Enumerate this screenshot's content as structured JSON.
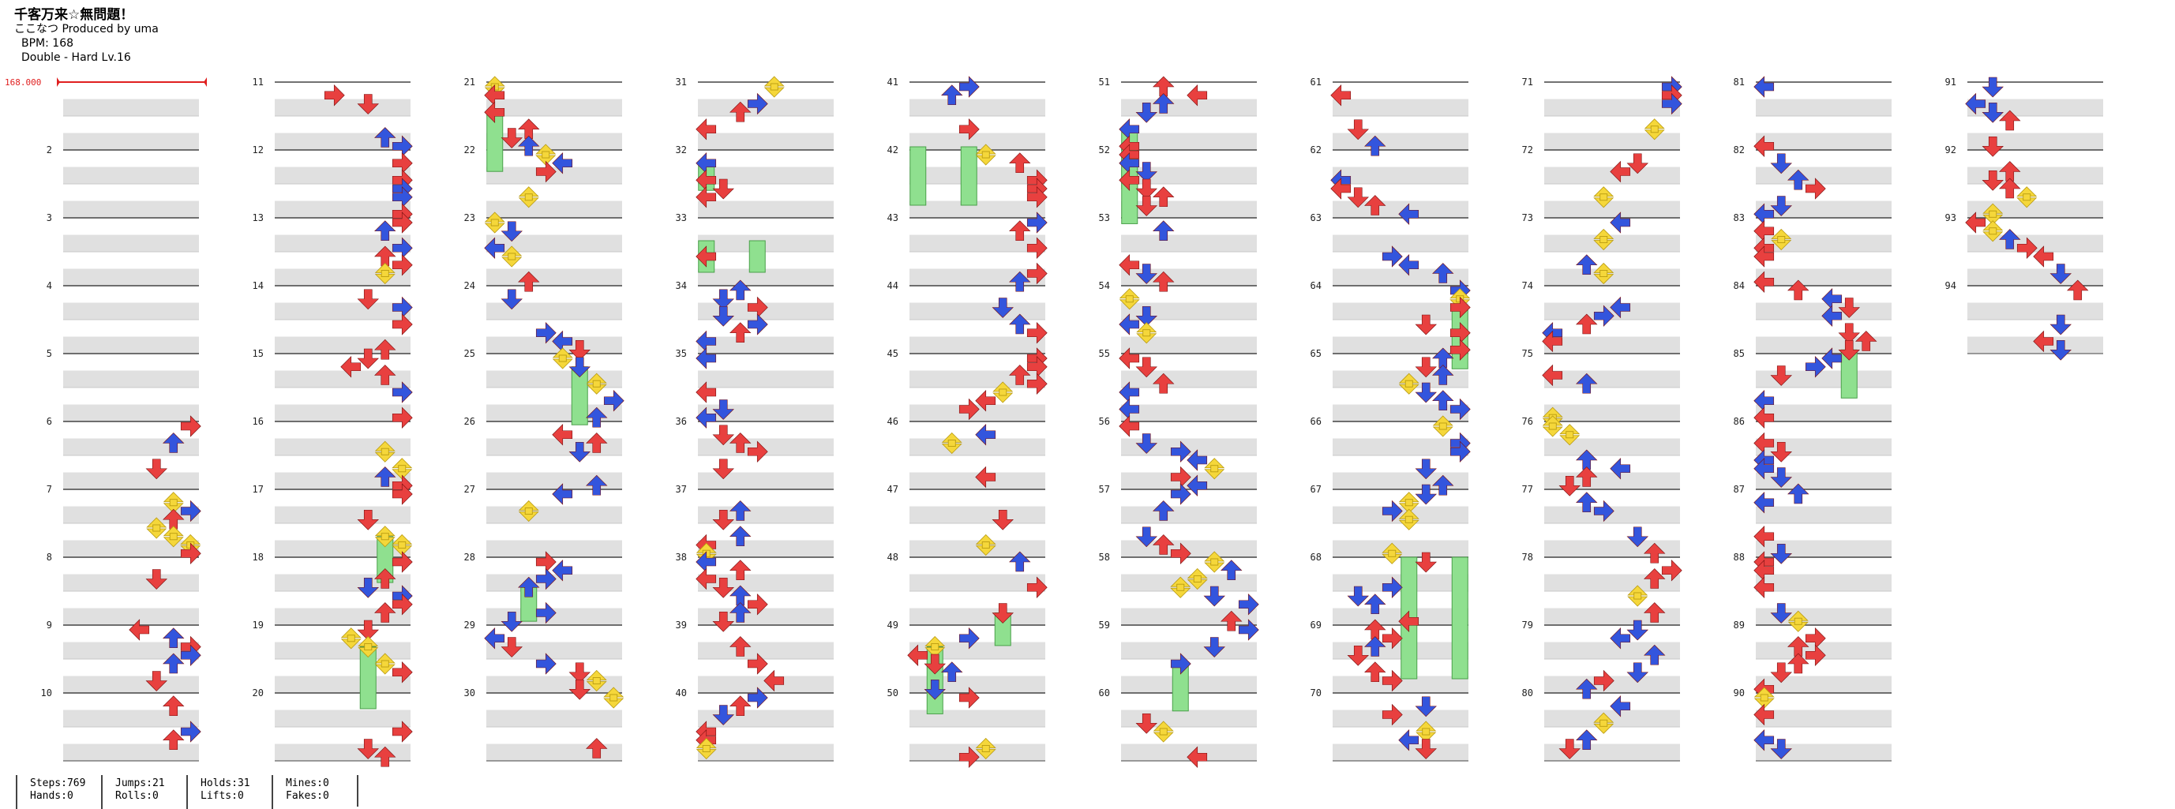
{
  "song": {
    "title": "千客万来☆無問題！",
    "subtitle": "ここなつ Produced by uma",
    "bpm_text": "BPM: 168",
    "difficulty_text": "Double - Hard Lv.16"
  },
  "bpm_marker": "168.000",
  "measure_numbers": [
    "11",
    "21",
    "31",
    "41",
    "51",
    "61",
    "71",
    "81",
    "91"
  ],
  "stats": {
    "steps": "Steps:769",
    "hands": "Hands:0",
    "jumps": "Jumps:21",
    "rolls": "Rolls:0",
    "holds": "Holds:31",
    "lifts": "Lifts:0",
    "mines": "Mines:0",
    "fakes": "Fakes:0"
  },
  "colors": {
    "red": "#e8403f",
    "blue": "#3355dd",
    "yellow": "#f5d73a",
    "purple": "#b44be0",
    "hold": "#8fe08f",
    "stripe": "#e0e0e0",
    "bpm_red": "#e02020"
  },
  "chart_data": {
    "type": "table",
    "title": "千客万来☆無問題！",
    "measures_total": 94,
    "measures_per_column": 10,
    "columns": 10,
    "lanes": 8,
    "first_column_start_measure": 6
  }
}
